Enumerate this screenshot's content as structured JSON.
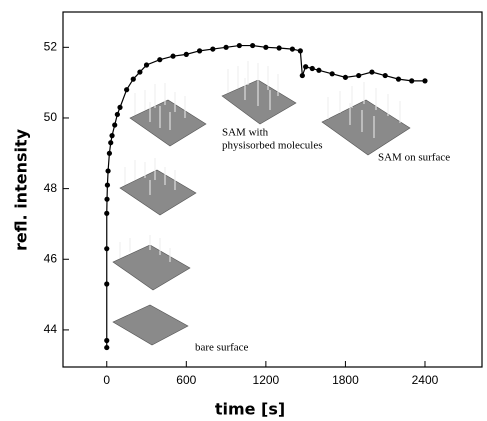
{
  "chart_data": {
    "type": "scatter",
    "x_label": "time [s]",
    "y_label": "refl. intensity",
    "annotations": [
      "bare surface",
      "SAM with",
      "physisorbed molecules",
      "SAM on surface"
    ],
    "x": [
      0,
      0,
      0,
      0,
      0,
      2,
      5,
      10,
      20,
      30,
      40,
      60,
      80,
      100,
      150,
      200,
      250,
      300,
      400,
      500,
      600,
      700,
      800,
      900,
      1000,
      1100,
      1200,
      1300,
      1400,
      1460,
      1475,
      1500,
      1550,
      1600,
      1700,
      1800,
      1900,
      2000,
      2100,
      2200,
      2300,
      2400
    ],
    "values": [
      43.5,
      43.7,
      45.3,
      46.3,
      47.3,
      47.7,
      48.1,
      48.5,
      49.0,
      49.3,
      49.5,
      49.8,
      50.1,
      50.3,
      50.8,
      51.1,
      51.3,
      51.5,
      51.65,
      51.75,
      51.8,
      51.9,
      51.95,
      52.0,
      52.05,
      52.05,
      52.0,
      51.98,
      51.95,
      51.9,
      51.2,
      51.45,
      51.4,
      51.35,
      51.25,
      51.15,
      51.2,
      51.3,
      51.2,
      51.1,
      51.05,
      51.05
    ],
    "color": "#000000",
    "xlim": [
      -330,
      2830
    ],
    "ylim": [
      42.95,
      53.0
    ],
    "xticks": [
      0,
      600,
      1200,
      1800,
      2400
    ],
    "yticks": [
      44,
      46,
      48,
      50,
      52
    ]
  }
}
